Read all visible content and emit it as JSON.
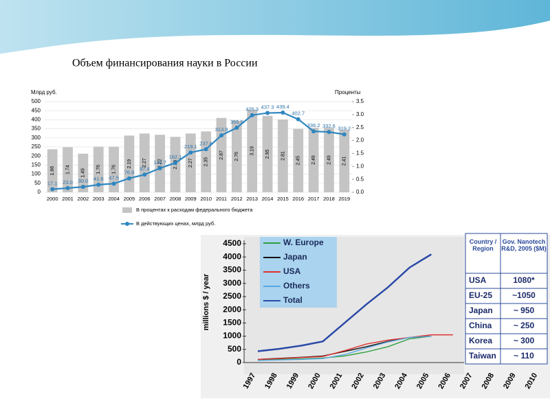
{
  "title": "Объем финансирования науки в России",
  "chart_data": [
    {
      "type": "combo",
      "y_label": "Млрд руб.",
      "y2_label": "Проценты",
      "categories": [
        "2000",
        "2001",
        "2002",
        "2003",
        "2004",
        "2005",
        "2006",
        "2007",
        "2008",
        "2009",
        "2010",
        "2011",
        "2012",
        "2013",
        "2014",
        "2015",
        "2016",
        "2017",
        "2018",
        "2019"
      ],
      "ylim": [
        0,
        500
      ],
      "yticks": [
        0,
        50,
        100,
        150,
        200,
        250,
        300,
        350,
        400,
        450,
        500
      ],
      "y2lim": [
        0,
        3.5
      ],
      "y2ticks": [
        {
          "value": 0,
          "label": "0.0"
        },
        0.5,
        {
          "value": 1,
          "label": "1.0"
        },
        1.5,
        {
          "value": 2,
          "label": "2.0"
        },
        2.5,
        {
          "value": 3,
          "label": "3.0"
        },
        3.5
      ],
      "series": [
        {
          "name": "В процентах к расходам федерального бюджета",
          "type": "bar",
          "axis": "y2",
          "color": "#c4c4c4",
          "values": [
            1.66,
            1.74,
            1.49,
            1.76,
            1.76,
            2.19,
            2.27,
            2.22,
            2.14,
            2.27,
            2.35,
            2.87,
            2.76,
            3.19,
            2.95,
            2.81,
            2.45,
            2.49,
            2.49,
            2.41
          ]
        },
        {
          "name": "В действующих ценах, млрд руб.",
          "type": "line",
          "color": "#2e86c1",
          "values": [
            17.1,
            23.0,
            30.0,
            41.6,
            47.5,
            76.9,
            97.4,
            132.7,
            162.1,
            219.1,
            237.6,
            313.9,
            355.9,
            425.3,
            437.3,
            439.4,
            402.7,
            336.2,
            332.6,
            319.2
          ],
          "value_labels": [
            "17.1",
            "23.0",
            "30.0",
            "41.6",
            "47.5",
            "76.9",
            "97.4",
            "132.7",
            "162.1",
            "219.1",
            "237.6",
            "313.9",
            "355.9",
            "425.3",
            "437.3",
            "439.4",
            "402.7",
            "336.2",
            "332.6",
            "319.2"
          ]
        }
      ]
    },
    {
      "type": "line",
      "y_label": "millions $ / year",
      "xlim": [
        1997,
        2010
      ],
      "xticks": [
        1997,
        1998,
        1999,
        2000,
        2001,
        2002,
        2003,
        2004,
        2005,
        2006,
        2007,
        2008,
        2009,
        2010
      ],
      "ylim": [
        0,
        4500
      ],
      "yticks": [
        0,
        500,
        1000,
        1500,
        2000,
        2500,
        3000,
        3500,
        4000,
        4500
      ],
      "series": [
        {
          "name": "W. Europe",
          "color": "#2e9e3e",
          "x": [
            1997,
            1998,
            1999,
            2000,
            2001,
            2002,
            2003,
            2004,
            2005
          ],
          "values": [
            100,
            120,
            140,
            170,
            250,
            400,
            600,
            900,
            1000
          ]
        },
        {
          "name": "Japan",
          "color": "#111111",
          "x": [
            1997,
            1998,
            1999,
            2000,
            2001,
            2002,
            2003,
            2004,
            2005
          ],
          "values": [
            120,
            160,
            200,
            250,
            420,
            600,
            800,
            950,
            1000
          ]
        },
        {
          "name": "USA",
          "color": "#e03030",
          "x": [
            1997,
            1998,
            1999,
            2000,
            2001,
            2002,
            2003,
            2004,
            2005,
            2006
          ],
          "values": [
            120,
            150,
            190,
            230,
            450,
            700,
            850,
            950,
            1050,
            1050
          ]
        },
        {
          "name": "Others",
          "color": "#5aa8e0",
          "x": [
            1997,
            1998,
            1999,
            2000,
            2001,
            2002,
            2003,
            2004,
            2005
          ],
          "values": [
            80,
            100,
            120,
            150,
            300,
            550,
            780,
            950,
            1000
          ]
        },
        {
          "name": "Total",
          "color": "#2a4aa8",
          "x": [
            1997,
            1998,
            1999,
            2000,
            2001,
            2002,
            2003,
            2004,
            2005
          ],
          "values": [
            430,
            520,
            640,
            800,
            1500,
            2200,
            2850,
            3600,
            4100
          ]
        }
      ]
    }
  ],
  "table": {
    "header": [
      "Country / Region",
      "Gov. Nanotech R&D, 2005 ($M)"
    ],
    "rows": [
      [
        "USA",
        "1080*"
      ],
      [
        "EU-25",
        "~1050"
      ],
      [
        "Japan",
        "~ 950"
      ],
      [
        "China",
        "~ 250"
      ],
      [
        "Korea",
        "~ 300"
      ],
      [
        "Taiwan",
        "~ 110"
      ]
    ]
  }
}
